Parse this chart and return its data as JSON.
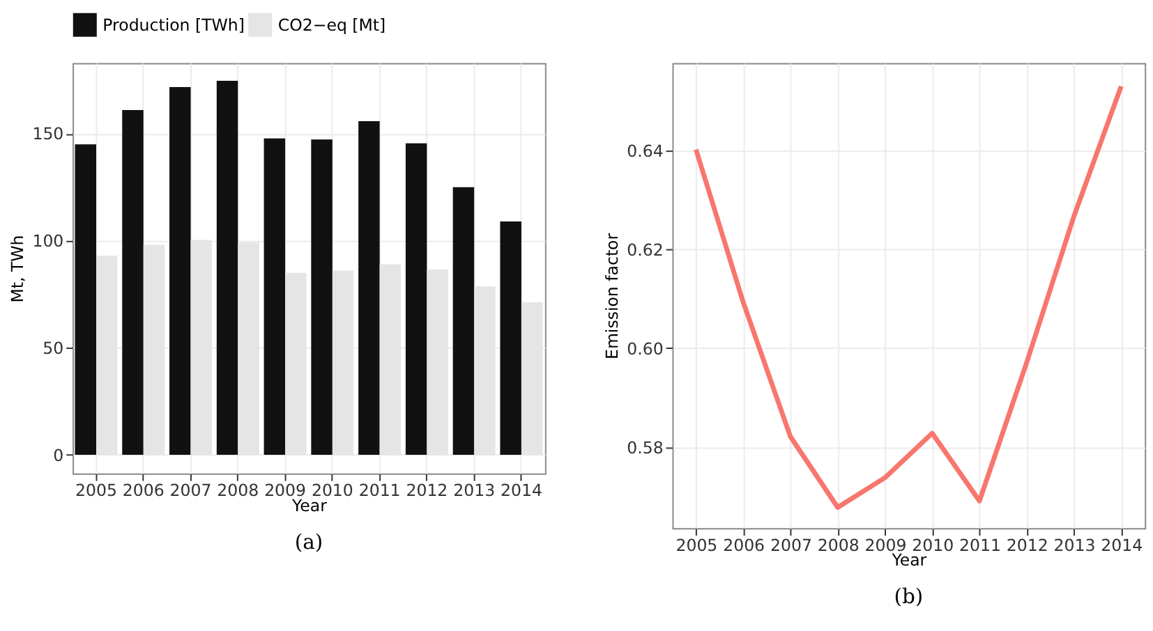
{
  "chart_data": [
    {
      "type": "bar",
      "xlabel": "Year",
      "ylabel": "Mt, TWh",
      "categories": [
        "2005",
        "2006",
        "2007",
        "2008",
        "2009",
        "2010",
        "2011",
        "2012",
        "2013",
        "2014"
      ],
      "series": [
        {
          "name": "Production [TWh]",
          "color": "#111111",
          "values": [
            144.9,
            160.9,
            171.7,
            174.6,
            147.7,
            147.2,
            155.7,
            145.4,
            124.9,
            108.9
          ]
        },
        {
          "name": "CO2−eq [Mt]",
          "color": "#e5e5e5",
          "values": [
            92.9,
            98.0,
            100.3,
            99.2,
            84.9,
            86.0,
            88.9,
            86.6,
            78.6,
            71.2
          ]
        }
      ],
      "ylim": [
        -8.7,
        182.9
      ],
      "yticks": [
        0,
        50,
        100,
        150
      ],
      "grid": true,
      "legend": "top",
      "annotations": [
        "(a)"
      ]
    },
    {
      "type": "line",
      "xlabel": "Year",
      "ylabel": "Emission factor",
      "categories": [
        "2005",
        "2006",
        "2007",
        "2008",
        "2009",
        "2010",
        "2011",
        "2012",
        "2013",
        "2014"
      ],
      "series": [
        {
          "color": "#f8766d",
          "values": [
            0.6402,
            0.6093,
            0.5821,
            0.5678,
            0.5738,
            0.5828,
            0.5691,
            0.5971,
            0.6267,
            0.653
          ]
        }
      ],
      "ylim": [
        0.5636,
        0.6577
      ],
      "yticks": [
        0.58,
        {
          "value": 0.6,
          "label": "0.60"
        },
        0.62,
        0.64
      ],
      "grid": true,
      "annotations": [
        "(b)"
      ]
    }
  ]
}
